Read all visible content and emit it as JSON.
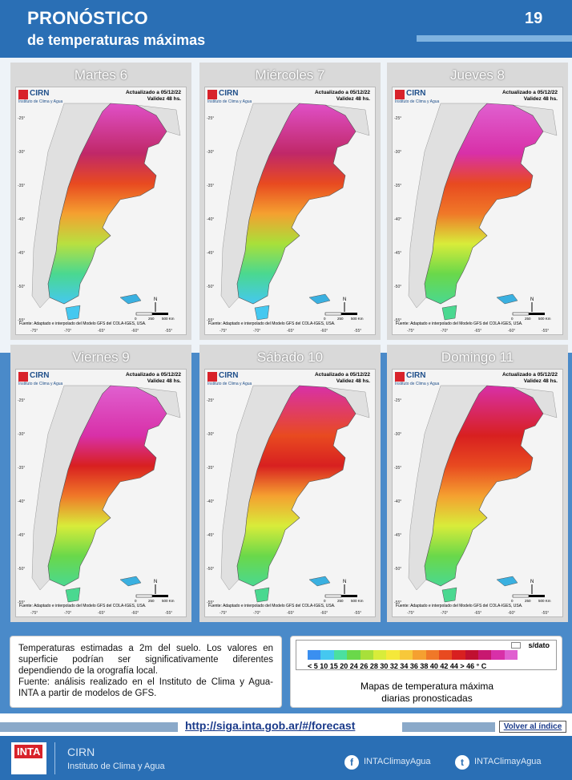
{
  "header": {
    "title": "PRONÓSTICO",
    "subtitle": "de temperaturas máximas",
    "page_number": "19"
  },
  "panels": [
    {
      "day": "Martes 6"
    },
    {
      "day": "Miércoles 7"
    },
    {
      "day": "Jueves 8"
    },
    {
      "day": "Viernes 9"
    },
    {
      "day": "Sábado 10"
    },
    {
      "day": "Domingo 11"
    }
  ],
  "map_common": {
    "logo": "CIRN",
    "institute": "Instituto de Clima y Agua",
    "updated": "Actualizado a 05/12/22",
    "validity": "Validez 48 hs.",
    "source": "Fuente: Adaptado e interpolado del Modelo GFS del COLA-IGES, USA.",
    "lon_ticks": [
      "-75°",
      "-70°",
      "-65°",
      "-60°",
      "-55°"
    ],
    "lat_ticks": [
      "-25°",
      "-30°",
      "-35°",
      "-40°",
      "-45°",
      "-50°",
      "-55°"
    ],
    "scale_labels": [
      "0",
      "250",
      "500 Km"
    ],
    "north": "N"
  },
  "info": {
    "text": "Temperaturas estimadas a 2m del suelo. Los valores en superficie podrían ser significativamente diferentes dependiendo de la orografía local.",
    "source": "Fuente: análisis realizado en el Instituto de Clima y Agua-INTA a partir de modelos de GFS."
  },
  "legend": {
    "nodata": "s/dato",
    "ticks": "< 5  10  15  20  24  26  28  30  32  34  36  38  40  42  44  > 46 ° C",
    "caption_line1": "Mapas de temperatura máxima",
    "caption_line2": "diarias pronosticadas",
    "colors": [
      "#3a8ff0",
      "#45c8f0",
      "#4be0a0",
      "#6ad84a",
      "#a8e03a",
      "#d8ec3a",
      "#f5e83a",
      "#f7c83a",
      "#f5a030",
      "#f07828",
      "#e84a20",
      "#d82020",
      "#c01030",
      "#c81870",
      "#d830a8",
      "#e060d0"
    ]
  },
  "link": {
    "url": "http://siga.inta.gob.ar/#/forecast",
    "back": "Volver al índice"
  },
  "footer": {
    "logo_text": "INTA",
    "cirn": "CIRN",
    "institute": "Instituto de Clima y Agua",
    "facebook": "INTAClimayAgua",
    "twitter": "INTAClimayAgua"
  }
}
